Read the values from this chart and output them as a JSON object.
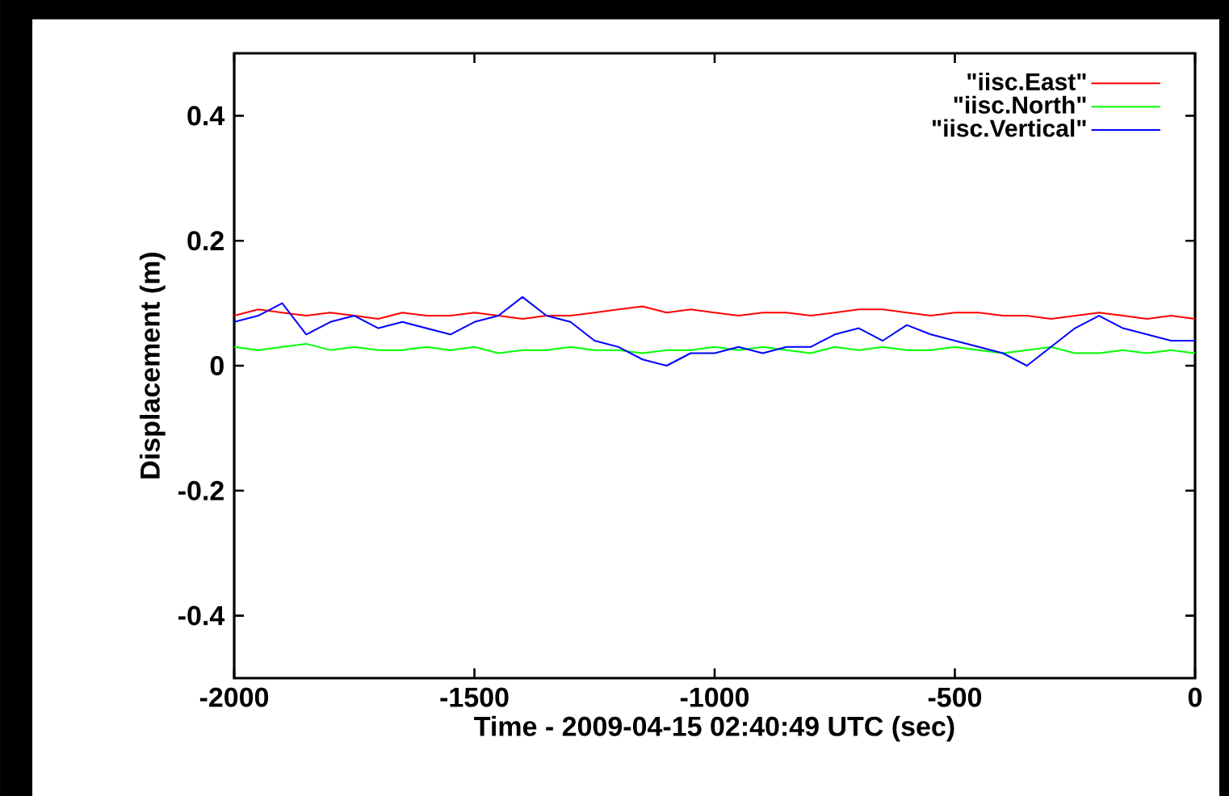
{
  "chart_data": {
    "type": "line",
    "xlabel": "Time - 2009-04-15 02:40:49 UTC (sec)",
    "ylabel": "Displacement (m)",
    "xlim": [
      -2000,
      0
    ],
    "ylim": [
      -0.5,
      0.5
    ],
    "xticks": [
      -2000,
      -1500,
      -1000,
      -500,
      0
    ],
    "yticks": [
      {
        "value": -0.4,
        "label": "-0.4"
      },
      {
        "value": -0.2,
        "label": "-0.2"
      },
      0,
      {
        "value": 0.2,
        "label": "0.2"
      },
      {
        "value": 0.4,
        "label": "0.4"
      }
    ],
    "grid": false,
    "legend": "top right",
    "marker": "none",
    "line_style": "solid",
    "x": [
      -2000,
      -1950,
      -1900,
      -1850,
      -1800,
      -1750,
      -1700,
      -1650,
      -1600,
      -1550,
      -1500,
      -1450,
      -1400,
      -1350,
      -1300,
      -1250,
      -1200,
      -1150,
      -1100,
      -1050,
      -1000,
      -950,
      -900,
      -850,
      -800,
      -750,
      -700,
      -650,
      -600,
      -550,
      -500,
      -450,
      -400,
      -350,
      -300,
      -250,
      -200,
      -150,
      -100,
      -50,
      0
    ],
    "series": [
      {
        "name": "\"iisc.East\"",
        "color": "#ff0000",
        "values": [
          0.08,
          0.09,
          0.085,
          0.08,
          0.085,
          0.08,
          0.075,
          0.085,
          0.08,
          0.08,
          0.085,
          0.08,
          0.075,
          0.08,
          0.08,
          0.085,
          0.09,
          0.095,
          0.085,
          0.09,
          0.085,
          0.08,
          0.085,
          0.085,
          0.08,
          0.085,
          0.09,
          0.09,
          0.085,
          0.08,
          0.085,
          0.085,
          0.08,
          0.08,
          0.075,
          0.08,
          0.085,
          0.08,
          0.075,
          0.08,
          0.075
        ]
      },
      {
        "name": "\"iisc.North\"",
        "color": "#00ff00",
        "values": [
          0.03,
          0.025,
          0.03,
          0.035,
          0.025,
          0.03,
          0.025,
          0.025,
          0.03,
          0.025,
          0.03,
          0.02,
          0.025,
          0.025,
          0.03,
          0.025,
          0.025,
          0.02,
          0.025,
          0.025,
          0.03,
          0.025,
          0.03,
          0.025,
          0.02,
          0.03,
          0.025,
          0.03,
          0.025,
          0.025,
          0.03,
          0.025,
          0.02,
          0.025,
          0.03,
          0.02,
          0.02,
          0.025,
          0.02,
          0.025,
          0.02
        ]
      },
      {
        "name": "\"iisc.Vertical\"",
        "color": "#0000ff",
        "values": [
          0.07,
          0.08,
          0.1,
          0.05,
          0.07,
          0.08,
          0.06,
          0.07,
          0.06,
          0.05,
          0.07,
          0.08,
          0.11,
          0.08,
          0.07,
          0.04,
          0.03,
          0.01,
          0.0,
          0.02,
          0.02,
          0.03,
          0.02,
          0.03,
          0.03,
          0.05,
          0.06,
          0.04,
          0.065,
          0.05,
          0.04,
          0.03,
          0.02,
          0.0,
          0.03,
          0.06,
          0.08,
          0.06,
          0.05,
          0.04,
          0.04
        ]
      }
    ]
  }
}
